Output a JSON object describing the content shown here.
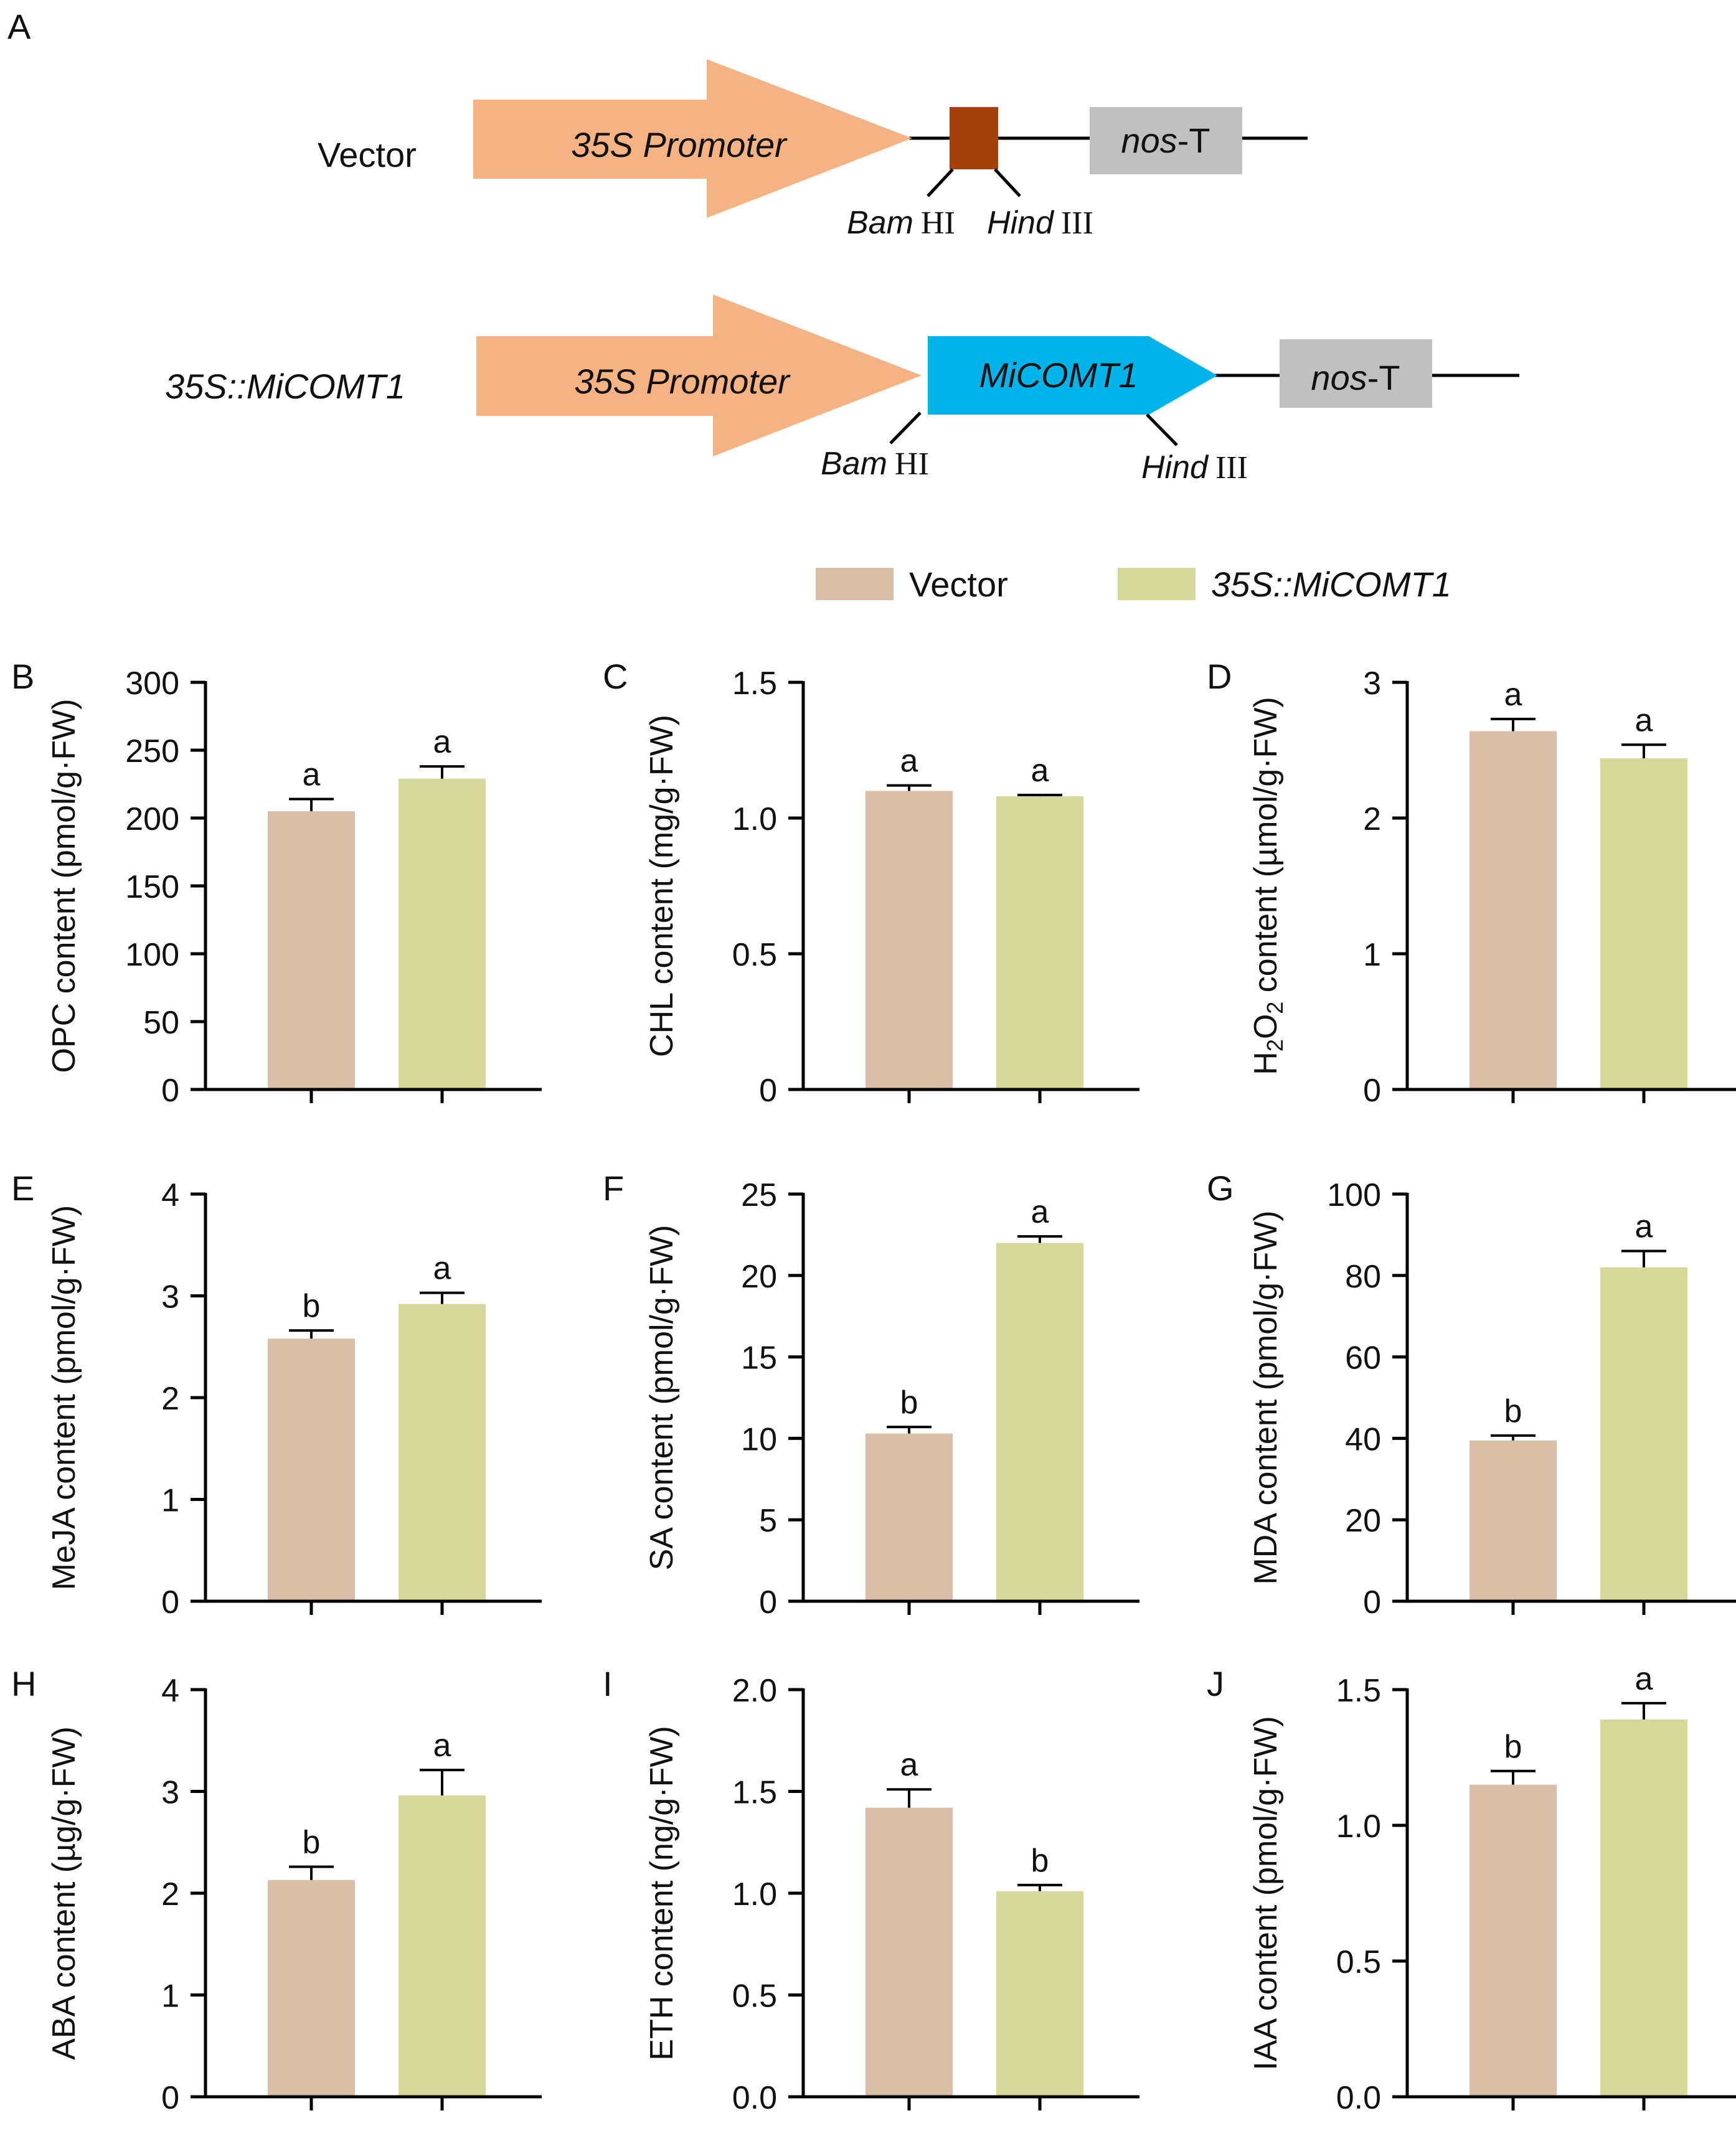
{
  "panel_letters": [
    "A",
    "B",
    "C",
    "D",
    "E",
    "F",
    "G",
    "H",
    "I",
    "J"
  ],
  "construct": {
    "vector_label": "Vector",
    "overexp_label": "35S::MiCOMT1",
    "promoter": "35S Promoter",
    "gene": "MiCOMT1",
    "terminator_italic": "nos",
    "terminator_rest": "-T",
    "site1_italic": "Bam",
    "site1_roman": "HI",
    "site2_italic": "Hind",
    "site2_roman": "III"
  },
  "legend": {
    "items": [
      {
        "label": "Vector",
        "color": "#dbbea6"
      },
      {
        "label": "35S::MiCOMT1",
        "color": "#d6d898"
      }
    ]
  },
  "colors": {
    "vector": "#dbbea6",
    "overexp": "#d6d898",
    "promoter": "#f5b282",
    "gene": "#00b4ea",
    "site_box": "#a5400a",
    "terminator": "#c0c0c0"
  },
  "chart_data": [
    {
      "panel": "B",
      "type": "bar",
      "ylabel": "OPC content (pmol/g·FW)",
      "ylim": [
        0,
        300
      ],
      "ticks": [
        0,
        50,
        100,
        150,
        200,
        250,
        300
      ],
      "tick_labels": [
        "0",
        "50",
        "100",
        "150",
        "200",
        "250",
        "300"
      ],
      "series": [
        {
          "name": "Vector",
          "value": 205,
          "error": 9,
          "sig": "a"
        },
        {
          "name": "35S::MiCOMT1",
          "value": 229,
          "error": 9,
          "sig": "a"
        }
      ]
    },
    {
      "panel": "C",
      "type": "bar",
      "ylabel": "CHL content (mg/g·FW)",
      "ylim": [
        0,
        1.5
      ],
      "ticks": [
        0,
        0.5,
        1.0,
        1.5
      ],
      "tick_labels": [
        "0",
        "0.5",
        "1.0",
        "1.5"
      ],
      "series": [
        {
          "name": "Vector",
          "value": 1.1,
          "error": 0.02,
          "sig": "a"
        },
        {
          "name": "35S::MiCOMT1",
          "value": 1.08,
          "error": 0.005,
          "sig": "a"
        }
      ]
    },
    {
      "panel": "D",
      "type": "bar",
      "ylabel_pre": "H",
      "ylabel_sub1": "2",
      "ylabel_mid": "O",
      "ylabel_sub2": "2",
      "ylabel_post": " content (µmol/g·FW)",
      "ylim": [
        0,
        3
      ],
      "ticks": [
        0,
        1,
        2,
        3
      ],
      "tick_labels": [
        "0",
        "1",
        "2",
        "3"
      ],
      "series": [
        {
          "name": "Vector",
          "value": 2.64,
          "error": 0.09,
          "sig": "a"
        },
        {
          "name": "35S::MiCOMT1",
          "value": 2.44,
          "error": 0.1,
          "sig": "a"
        }
      ]
    },
    {
      "panel": "E",
      "type": "bar",
      "ylabel": "MeJA content (pmol/g·FW)",
      "ylim": [
        0,
        4
      ],
      "ticks": [
        0,
        1,
        2,
        3,
        4
      ],
      "tick_labels": [
        "0",
        "1",
        "2",
        "3",
        "4"
      ],
      "series": [
        {
          "name": "Vector",
          "value": 2.58,
          "error": 0.08,
          "sig": "b"
        },
        {
          "name": "35S::MiCOMT1",
          "value": 2.92,
          "error": 0.11,
          "sig": "a"
        }
      ]
    },
    {
      "panel": "F",
      "type": "bar",
      "ylabel": "SA content (pmol/g·FW)",
      "ylim": [
        0,
        25
      ],
      "ticks": [
        0,
        5,
        10,
        15,
        20,
        25
      ],
      "tick_labels": [
        "0",
        "5",
        "10",
        "15",
        "20",
        "25"
      ],
      "series": [
        {
          "name": "Vector",
          "value": 10.3,
          "error": 0.4,
          "sig": "b"
        },
        {
          "name": "35S::MiCOMT1",
          "value": 22.0,
          "error": 0.4,
          "sig": "a"
        }
      ]
    },
    {
      "panel": "G",
      "type": "bar",
      "ylabel": "MDA content (pmol/g·FW)",
      "ylim": [
        0,
        100
      ],
      "ticks": [
        0,
        20,
        40,
        60,
        80,
        100
      ],
      "tick_labels": [
        "0",
        "20",
        "40",
        "60",
        "80",
        "100"
      ],
      "series": [
        {
          "name": "Vector",
          "value": 39.5,
          "error": 1.2,
          "sig": "b"
        },
        {
          "name": "35S::MiCOMT1",
          "value": 82,
          "error": 4,
          "sig": "a"
        }
      ]
    },
    {
      "panel": "H",
      "type": "bar",
      "ylabel": "ABA content (µg/g·FW)",
      "ylim": [
        0,
        4
      ],
      "ticks": [
        0,
        1,
        2,
        3,
        4
      ],
      "tick_labels": [
        "0",
        "1",
        "2",
        "3",
        "4"
      ],
      "series": [
        {
          "name": "Vector",
          "value": 2.13,
          "error": 0.13,
          "sig": "b"
        },
        {
          "name": "35S::MiCOMT1",
          "value": 2.96,
          "error": 0.25,
          "sig": "a"
        }
      ]
    },
    {
      "panel": "I",
      "type": "bar",
      "ylabel": "ETH content (ng/g·FW)",
      "ylim": [
        0,
        2.0
      ],
      "ticks": [
        0,
        0.5,
        1.0,
        1.5,
        2.0
      ],
      "tick_labels": [
        "0.0",
        "0.5",
        "1.0",
        "1.5",
        "2.0"
      ],
      "series": [
        {
          "name": "Vector",
          "value": 1.42,
          "error": 0.09,
          "sig": "a"
        },
        {
          "name": "35S::MiCOMT1",
          "value": 1.01,
          "error": 0.03,
          "sig": "b"
        }
      ]
    },
    {
      "panel": "J",
      "type": "bar",
      "ylabel": "IAA content (pmol/g·FW)",
      "ylim": [
        0,
        1.5
      ],
      "ticks": [
        0,
        0.5,
        1.0,
        1.5
      ],
      "tick_labels": [
        "0.0",
        "0.5",
        "1.0",
        "1.5"
      ],
      "series": [
        {
          "name": "Vector",
          "value": 1.15,
          "error": 0.05,
          "sig": "b"
        },
        {
          "name": "35S::MiCOMT1",
          "value": 1.39,
          "error": 0.06,
          "sig": "a"
        }
      ]
    }
  ]
}
